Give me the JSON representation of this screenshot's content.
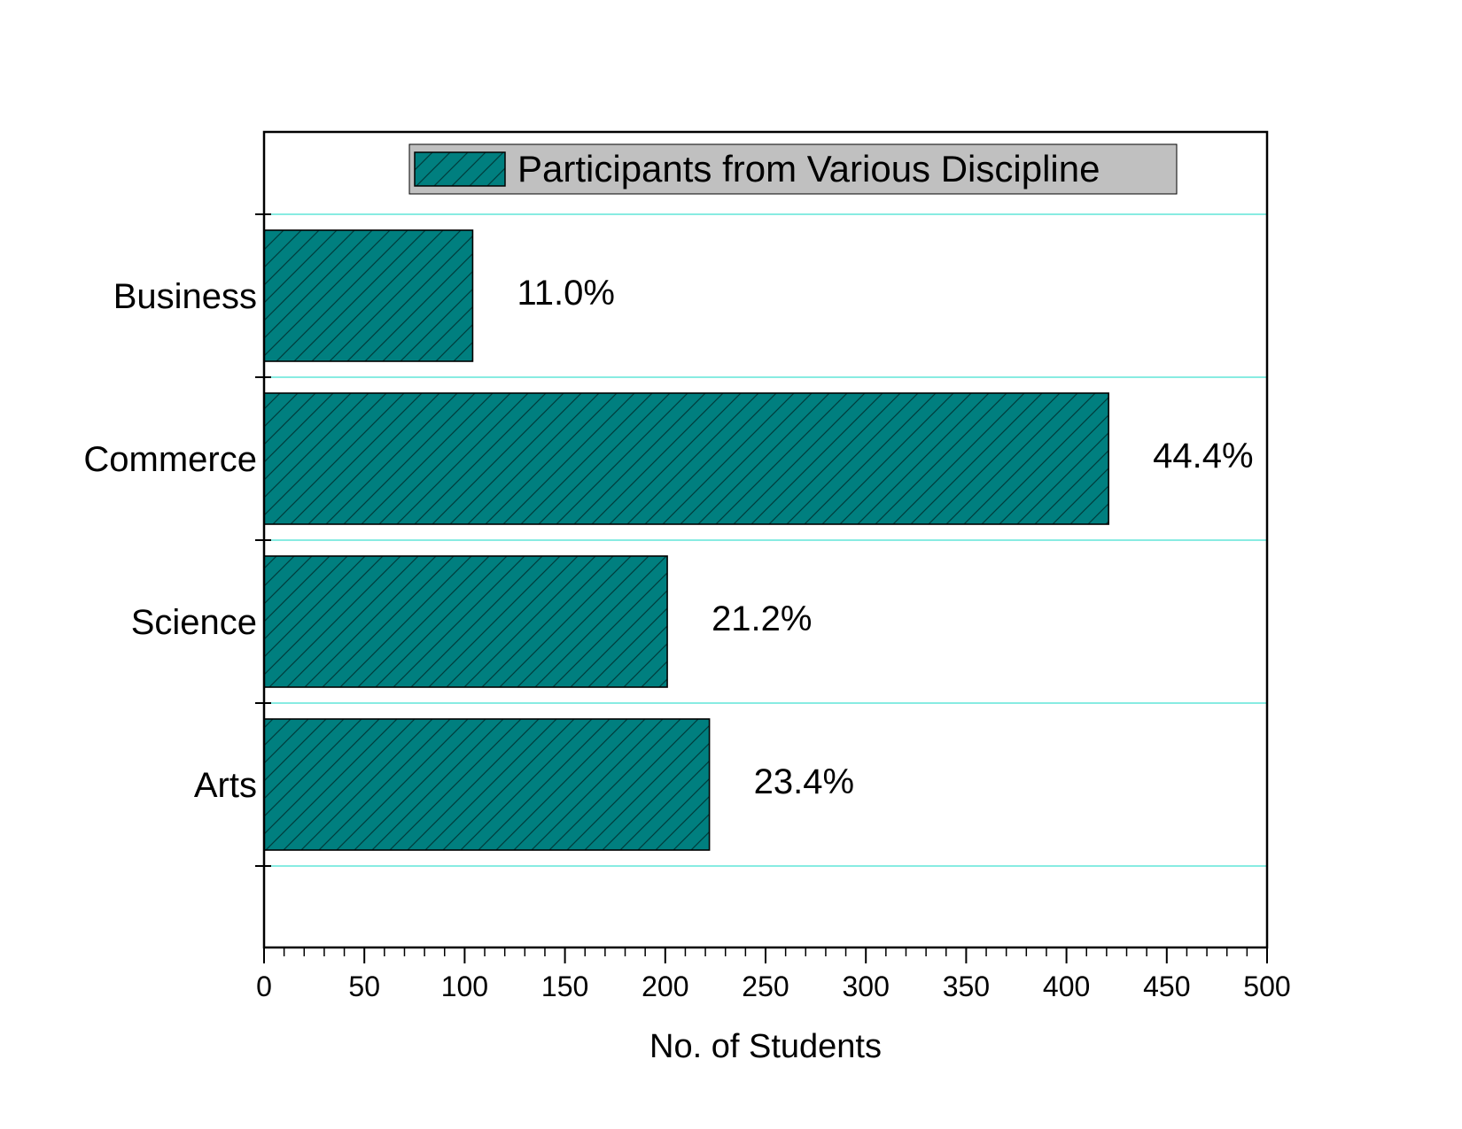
{
  "chart_data": {
    "type": "bar",
    "orientation": "horizontal",
    "title": "",
    "xlabel": "No. of Students",
    "ylabel": "",
    "xlim": [
      0,
      500
    ],
    "x_ticks": [
      0,
      50,
      100,
      150,
      200,
      250,
      300,
      350,
      400,
      450,
      500
    ],
    "categories": [
      "Business",
      "Commerce",
      "Science",
      "Arts"
    ],
    "series": [
      {
        "name": "Participants from Various Discipline",
        "values": [
          104,
          421,
          201,
          222
        ],
        "data_labels": [
          "11.0%",
          "44.4%",
          "21.2%",
          "23.4%"
        ]
      }
    ],
    "legend": {
      "position": "top-center",
      "label": "Participants from Various Discipline"
    },
    "grid": {
      "horizontal": true,
      "vertical": false
    },
    "colors": {
      "bar_fill": "#007f7f",
      "hatch": "#003c3c",
      "grid": "#40e0d0",
      "legend_bg": "#c0c0c0"
    }
  }
}
